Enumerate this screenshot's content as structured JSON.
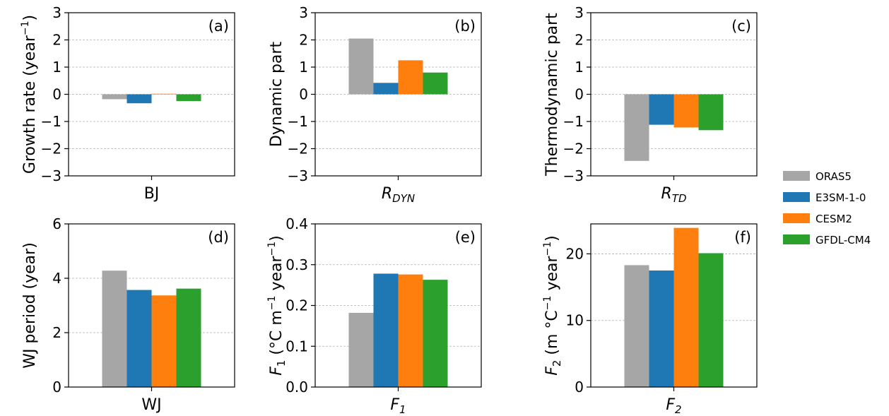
{
  "legend": {
    "items": [
      {
        "name": "ORAS5",
        "color": "#a6a6a6"
      },
      {
        "name": "E3SM-1-0",
        "color": "#1f77b4"
      },
      {
        "name": "CESM2",
        "color": "#ff7f0e"
      },
      {
        "name": "GFDL-CM4",
        "color": "#2ca02c"
      }
    ]
  },
  "chart_data": [
    {
      "type": "bar",
      "panel": "(a)",
      "categories": [
        "BJ"
      ],
      "series": [
        {
          "name": "ORAS5",
          "values": [
            -0.18
          ]
        },
        {
          "name": "E3SM-1-0",
          "values": [
            -0.33
          ]
        },
        {
          "name": "CESM2",
          "values": [
            0.02
          ]
        },
        {
          "name": "GFDL-CM4",
          "values": [
            -0.25
          ]
        }
      ],
      "ylabel": "Growth rate (year",
      "ylabel_sup": "−1",
      "ylabel_tail": ")",
      "xlabel": "BJ",
      "xlabel_italic": false,
      "xlabel_sub": "",
      "ylim": [
        -3,
        3
      ],
      "yticks": [
        3,
        2,
        1,
        0,
        -1,
        -2,
        -3
      ],
      "ytick_labels": [
        "3",
        "2",
        "1",
        "0",
        "−1",
        "−2",
        "−3"
      ],
      "grid": true
    },
    {
      "type": "bar",
      "panel": "(b)",
      "categories": [
        "R_DYN"
      ],
      "series": [
        {
          "name": "ORAS5",
          "values": [
            2.05
          ]
        },
        {
          "name": "E3SM-1-0",
          "values": [
            0.42
          ]
        },
        {
          "name": "CESM2",
          "values": [
            1.25
          ]
        },
        {
          "name": "GFDL-CM4",
          "values": [
            0.8
          ]
        }
      ],
      "ylabel": "Dynamic part",
      "ylabel_sup": "",
      "ylabel_tail": "",
      "xlabel": "R",
      "xlabel_italic": true,
      "xlabel_sub": "DYN",
      "ylim": [
        -3,
        3
      ],
      "yticks": [
        3,
        2,
        1,
        0,
        -1,
        -2,
        -3
      ],
      "ytick_labels": [
        "3",
        "2",
        "1",
        "0",
        "−1",
        "−2",
        "−3"
      ],
      "grid": true
    },
    {
      "type": "bar",
      "panel": "(c)",
      "categories": [
        "R_TD"
      ],
      "series": [
        {
          "name": "ORAS5",
          "values": [
            -2.45
          ]
        },
        {
          "name": "E3SM-1-0",
          "values": [
            -1.12
          ]
        },
        {
          "name": "CESM2",
          "values": [
            -1.22
          ]
        },
        {
          "name": "GFDL-CM4",
          "values": [
            -1.32
          ]
        }
      ],
      "ylabel": "Thermodynamic part",
      "ylabel_sup": "",
      "ylabel_tail": "",
      "xlabel": "R",
      "xlabel_italic": true,
      "xlabel_sub": "TD",
      "ylim": [
        -3,
        3
      ],
      "yticks": [
        3,
        2,
        1,
        0,
        -1,
        -2,
        -3
      ],
      "ytick_labels": [
        "3",
        "2",
        "1",
        "0",
        "−1",
        "−2",
        "−3"
      ],
      "grid": true
    },
    {
      "type": "bar",
      "panel": "(d)",
      "categories": [
        "WJ"
      ],
      "series": [
        {
          "name": "ORAS5",
          "values": [
            4.28
          ]
        },
        {
          "name": "E3SM-1-0",
          "values": [
            3.57
          ]
        },
        {
          "name": "CESM2",
          "values": [
            3.37
          ]
        },
        {
          "name": "GFDL-CM4",
          "values": [
            3.62
          ]
        }
      ],
      "ylabel": "WJ period (year)",
      "ylabel_sup": "",
      "ylabel_tail": "",
      "xlabel": "WJ",
      "xlabel_italic": false,
      "xlabel_sub": "",
      "ylim": [
        0,
        6
      ],
      "yticks": [
        6,
        4,
        2,
        0
      ],
      "ytick_labels": [
        "6",
        "4",
        "2",
        "0"
      ],
      "grid": true
    },
    {
      "type": "bar",
      "panel": "(e)",
      "categories": [
        "F_1"
      ],
      "series": [
        {
          "name": "ORAS5",
          "values": [
            0.182
          ]
        },
        {
          "name": "E3SM-1-0",
          "values": [
            0.278
          ]
        },
        {
          "name": "CESM2",
          "values": [
            0.276
          ]
        },
        {
          "name": "GFDL-CM4",
          "values": [
            0.263
          ]
        }
      ],
      "ylabel": "F",
      "ylabel_sub": "1",
      "ylabel_units": " (°C m",
      "ylabel_sup1": "−1",
      "ylabel_units2": " year",
      "ylabel_sup2": "−1",
      "ylabel_end": ")",
      "xlabel": "F",
      "xlabel_italic": true,
      "xlabel_sub": "1",
      "ylim": [
        0,
        0.4
      ],
      "yticks": [
        0.4,
        0.3,
        0.2,
        0.1,
        0
      ],
      "ytick_labels": [
        "0.4",
        "0.3",
        "0.2",
        "0.1",
        "0.0"
      ],
      "grid": true
    },
    {
      "type": "bar",
      "panel": "(f)",
      "categories": [
        "F_2"
      ],
      "series": [
        {
          "name": "ORAS5",
          "values": [
            18.3
          ]
        },
        {
          "name": "E3SM-1-0",
          "values": [
            17.5
          ]
        },
        {
          "name": "CESM2",
          "values": [
            23.9
          ]
        },
        {
          "name": "GFDL-CM4",
          "values": [
            20.1
          ]
        }
      ],
      "ylabel": "F",
      "ylabel_sub": "2",
      "ylabel_units": " (m °C",
      "ylabel_sup1": "−1",
      "ylabel_units2": " year",
      "ylabel_sup2": "−1",
      "ylabel_end": ")",
      "xlabel": "F",
      "xlabel_italic": true,
      "xlabel_sub": "2",
      "ylim": [
        0,
        24.5
      ],
      "yticks": [
        20,
        10,
        0
      ],
      "ytick_labels": [
        "20",
        "10",
        "0"
      ],
      "grid": true
    }
  ]
}
